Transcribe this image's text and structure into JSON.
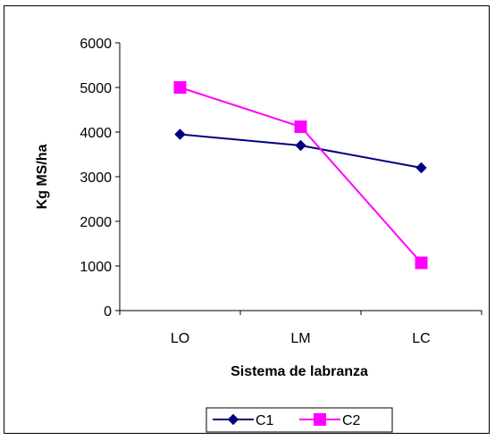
{
  "chart_data": {
    "type": "line",
    "categories": [
      "LO",
      "LM",
      "LC"
    ],
    "xlabel": "Sistema de labranza",
    "ylabel": "Kg MS/ha",
    "ylim": [
      0,
      6000
    ],
    "yticks": [
      "0",
      "1000",
      "2000",
      "3000",
      "4000",
      "5000",
      "6000"
    ],
    "grid": false,
    "legend_position": "bottom",
    "series": [
      {
        "name": "C1",
        "values": [
          3950,
          3700,
          3200
        ],
        "color": "#000080",
        "marker": "diamond"
      },
      {
        "name": "C2",
        "values": [
          5000,
          4120,
          1070
        ],
        "color": "#FF00FF",
        "marker": "square"
      }
    ]
  }
}
